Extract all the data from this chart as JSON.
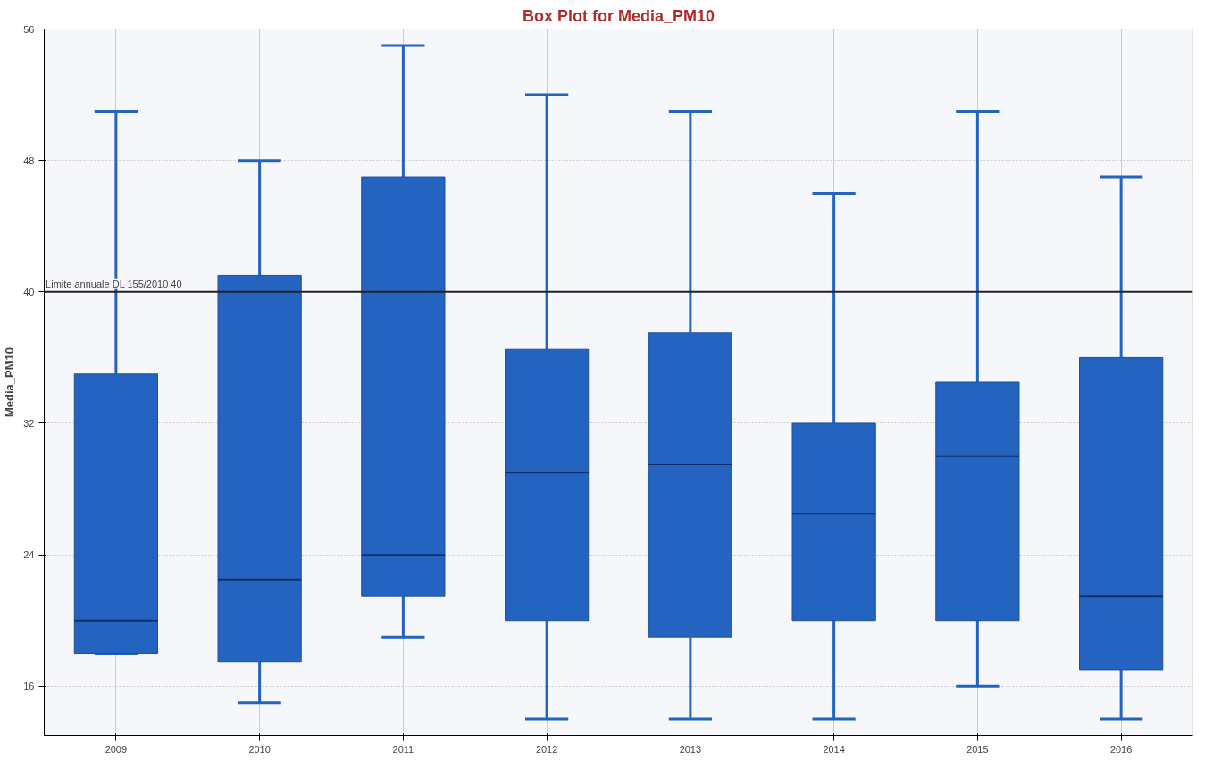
{
  "chart_data": {
    "type": "box",
    "title": "Box Plot for Media_PM10",
    "ylabel": "Media_PM10",
    "categories": [
      "2009",
      "2010",
      "2011",
      "2012",
      "2013",
      "2014",
      "2015",
      "2016"
    ],
    "boxes": [
      {
        "low": 18,
        "q1": 18,
        "median": 20,
        "q3": 35,
        "high": 51
      },
      {
        "low": 15,
        "q1": 17.5,
        "median": 22.5,
        "q3": 41,
        "high": 48
      },
      {
        "low": 19,
        "q1": 21.5,
        "median": 24,
        "q3": 47,
        "high": 55
      },
      {
        "low": 14,
        "q1": 20,
        "median": 29,
        "q3": 36.5,
        "high": 52
      },
      {
        "low": 14,
        "q1": 19,
        "median": 29.5,
        "q3": 37.5,
        "high": 51
      },
      {
        "low": 14,
        "q1": 20,
        "median": 26.5,
        "q3": 32,
        "high": 46
      },
      {
        "low": 16,
        "q1": 20,
        "median": 30,
        "q3": 34.5,
        "high": 51
      },
      {
        "low": 14,
        "q1": 17,
        "median": 21.5,
        "q3": 36,
        "high": 47
      }
    ],
    "color": "#2563c1",
    "ylim": [
      13,
      56
    ],
    "yticks": [
      16,
      24,
      32,
      40,
      48,
      56
    ],
    "ref_lines": [
      {
        "axis": "y",
        "value": 40,
        "label": "Limite annuale DL 155/2010 40",
        "color": "#222222"
      }
    ],
    "grid": true
  }
}
